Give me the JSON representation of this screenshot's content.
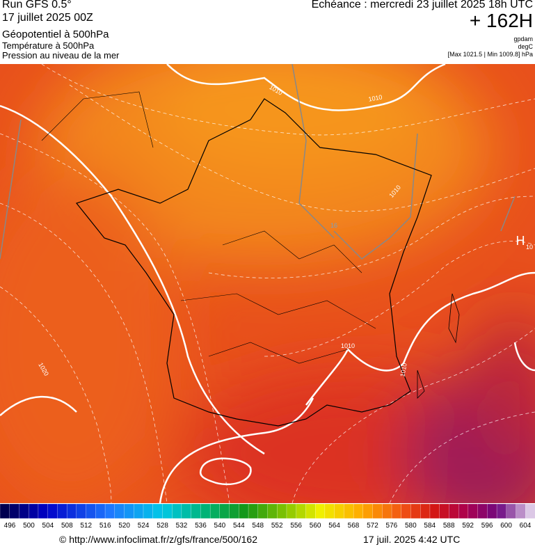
{
  "header": {
    "run": "Run GFS 0.5°",
    "run_date": "17 juillet 2025 00Z",
    "title": "Géopotentiel à 500hPa",
    "subtitle": "Température à 500hPa",
    "subtitle2": "Pression au niveau de la mer",
    "echeance": "Echéance : mercredi 23 juillet 2025 18h UTC",
    "lead": "+ 162H",
    "units": [
      "gpdam",
      "degC",
      "[Max 1021.5 | Min 1009.8] hPa"
    ]
  },
  "map": {
    "labels": [
      "1010",
      "1010",
      "1010",
      "1020",
      "16",
      "1010",
      "1010",
      "H",
      "10"
    ]
  },
  "colorbar": {
    "labels": [
      496,
      500,
      504,
      508,
      512,
      516,
      520,
      524,
      528,
      532,
      536,
      540,
      544,
      548,
      552,
      556,
      560,
      564,
      568,
      572,
      576,
      580,
      584,
      588,
      592,
      596,
      600,
      604
    ]
  },
  "footer": {
    "source": "© http://www.infoclimat.fr/z/gfs/france/500/162",
    "timestamp": "17 juil. 2025  4:42 UTC"
  }
}
